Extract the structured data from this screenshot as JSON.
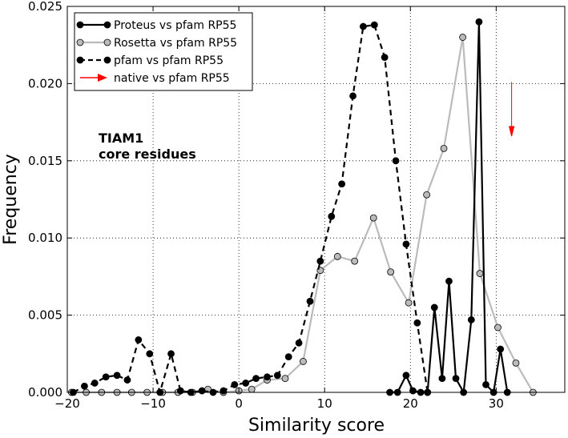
{
  "chart_data": {
    "type": "line",
    "xlabel": "Similarity score",
    "ylabel": "Frequency",
    "xlim": [
      -20,
      38
    ],
    "ylim": [
      0,
      0.025
    ],
    "xticks": [
      "−20",
      "−10",
      "0",
      "10",
      "20",
      "30"
    ],
    "xtick_values": [
      -20,
      -10,
      0,
      10,
      20,
      30
    ],
    "yticks": [
      "0.000",
      "0.005",
      "0.010",
      "0.015",
      "0.020",
      "0.025"
    ],
    "ytick_values": [
      0,
      0.005,
      0.01,
      0.015,
      0.02,
      0.025
    ],
    "grid": true,
    "legend_placement": "top-left",
    "annotation": [
      "TIAM1",
      "core residues"
    ],
    "series": [
      {
        "name": "Proteus vs pfam RP55",
        "color": "#000000",
        "marker_fill": "#000000",
        "dash": "solid",
        "x": [
          17.6,
          18.5,
          19.5,
          20.3,
          21.2,
          22.0,
          22.8,
          23.7,
          24.5,
          25.3,
          26.2,
          27.1,
          28.0,
          28.8,
          29.7,
          30.5,
          31.3
        ],
        "y": [
          0.0,
          0.0,
          0.0011,
          0.0001,
          0.0,
          0.0,
          0.0055,
          0.0009,
          0.0072,
          0.0009,
          0.0,
          0.0047,
          0.024,
          0.0005,
          0.0,
          0.0028,
          0.0
        ]
      },
      {
        "name": "Rosetta vs pfam RP55",
        "color": "#bbbbbb",
        "marker_fill": "#bbbbbb",
        "dash": "solid",
        "x": [
          -19.5,
          -17.8,
          -16.0,
          -14.2,
          -12.5,
          -10.7,
          -8.9,
          -7.1,
          -5.4,
          -3.6,
          -1.8,
          0.0,
          1.5,
          3.3,
          5.4,
          7.5,
          9.5,
          11.5,
          13.5,
          15.7,
          17.7,
          19.8,
          21.9,
          23.9,
          26.1,
          28.1,
          30.2,
          32.3,
          34.3
        ],
        "y": [
          0.0,
          0.0,
          0.0,
          0.0,
          0.0,
          0.0,
          0.0,
          0.0,
          0.0,
          0.0002,
          0.0,
          0.0001,
          0.0002,
          0.0008,
          0.0009,
          0.002,
          0.0079,
          0.0088,
          0.0085,
          0.0113,
          0.0078,
          0.0058,
          0.0128,
          0.0158,
          0.023,
          0.0077,
          0.0042,
          0.0019,
          0.0
        ]
      },
      {
        "name": "pfam vs pfam RP55",
        "color": "#000000",
        "marker_fill": "#000000",
        "dash": "dashed",
        "x": [
          -19.3,
          -18.0,
          -16.8,
          -15.5,
          -14.2,
          -13.0,
          -11.7,
          -10.4,
          -9.2,
          -7.9,
          -6.8,
          -5.6,
          -4.3,
          -3.0,
          -1.8,
          -0.5,
          0.8,
          2.0,
          3.3,
          4.5,
          5.8,
          7.0,
          8.3,
          9.5,
          10.8,
          12.0,
          13.3,
          14.5,
          15.8,
          17.0,
          18.3,
          19.5,
          20.8,
          22.0
        ],
        "y": [
          0.0,
          0.0004,
          0.0006,
          0.001,
          0.0011,
          0.0008,
          0.0034,
          0.0025,
          0.0,
          0.0025,
          0.0001,
          0.0,
          0.0001,
          0.0,
          0.0001,
          0.0005,
          0.0006,
          0.0009,
          0.001,
          0.0011,
          0.0023,
          0.0032,
          0.0059,
          0.0085,
          0.0114,
          0.0135,
          0.0192,
          0.0237,
          0.0238,
          0.0217,
          0.015,
          0.0096,
          0.0045,
          0.0
        ]
      },
      {
        "name": "native vs pfam RP55",
        "color": "#ff0000",
        "type": "arrow",
        "x": [
          31.8
        ],
        "y": [
          0.0201
        ]
      }
    ]
  }
}
